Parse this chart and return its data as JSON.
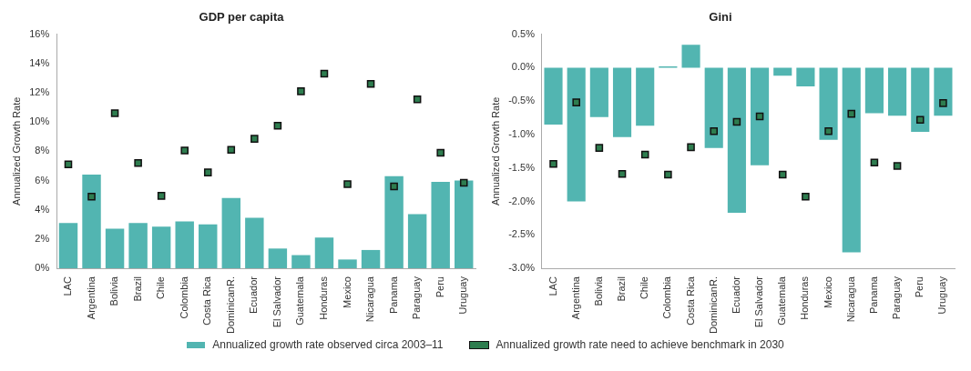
{
  "chart_data": [
    {
      "type": "bar",
      "title": "GDP per capita",
      "ylabel": "Annualized Growth Rate",
      "categories": [
        "LAC",
        "Argentina",
        "Bolivia",
        "Brazil",
        "Chile",
        "Colombia",
        "Costa Rica",
        "DominicanR.",
        "Ecuador",
        "El Salvador",
        "Guatemala",
        "Honduras",
        "Mexico",
        "Nicaragua",
        "Panama",
        "Paraguay",
        "Peru",
        "Uruguay"
      ],
      "series": [
        {
          "name": "Annualized growth rate observed circa 2003–11",
          "color": "#52b5b1",
          "values": [
            3.1,
            6.4,
            2.7,
            3.1,
            2.85,
            3.2,
            3.0,
            4.8,
            3.45,
            1.35,
            0.9,
            2.1,
            0.6,
            1.25,
            6.3,
            3.7,
            5.9,
            6.0
          ]
        },
        {
          "type": "scatter",
          "name": "Annualized growth rate need to achieve benchmark in 2030",
          "color": "#2e7d4f",
          "marker": "square",
          "x": [
            "LAC",
            "Argentina",
            "Bolivia",
            "Brazil",
            "Chile",
            "Colombia",
            "Costa Rica",
            "DominicanR.",
            "Ecuador",
            "El Salvador",
            "Guatemala",
            "Honduras",
            "Mexico",
            "Nicaragua",
            "Panama",
            "Paraguay",
            "Peru",
            "Uruguay"
          ],
          "values": [
            7.1,
            4.9,
            10.6,
            7.2,
            4.95,
            8.05,
            6.55,
            8.1,
            8.85,
            9.75,
            12.1,
            13.3,
            5.75,
            12.6,
            5.6,
            11.55,
            7.9,
            5.85
          ]
        }
      ],
      "ylim": [
        0,
        16
      ],
      "yticks": [
        {
          "value": 0,
          "label": "0%"
        },
        {
          "value": 2,
          "label": "2%"
        },
        {
          "value": 4,
          "label": "4%"
        },
        {
          "value": 6,
          "label": "6%"
        },
        {
          "value": 8,
          "label": "8%"
        },
        {
          "value": 10,
          "label": "10%"
        },
        {
          "value": 12,
          "label": "12%"
        },
        {
          "value": 14,
          "label": "14%"
        },
        {
          "value": 16,
          "label": "16%"
        }
      ],
      "legend": "bottom"
    },
    {
      "type": "bar",
      "title": "Gini",
      "ylabel": "Annualized Growth Rate",
      "categories": [
        "LAC",
        "Argentina",
        "Bolivia",
        "Brazil",
        "Chile",
        "Colombia",
        "Costa Rica",
        "DominicanR.",
        "Ecuador",
        "El Salvador",
        "Guatemala",
        "Honduras",
        "Mexico",
        "Nicaragua",
        "Panama",
        "Paraguay",
        "Peru",
        "Uruguay"
      ],
      "series": [
        {
          "color": "#52b5b1",
          "values": [
            -0.85,
            -2.0,
            -0.74,
            -1.04,
            -0.87,
            0.02,
            0.34,
            -1.2,
            -2.17,
            -1.46,
            -0.12,
            -0.28,
            -1.08,
            -2.76,
            -0.68,
            -0.72,
            -0.96,
            -0.72
          ]
        },
        {
          "type": "scatter",
          "color": "#2e7d4f",
          "marker": "square",
          "x": [
            "LAC",
            "Argentina",
            "Bolivia",
            "Brazil",
            "Chile",
            "Colombia",
            "Costa Rica",
            "DominicanR.",
            "Ecuador",
            "El Salvador",
            "Guatemala",
            "Honduras",
            "Mexico",
            "Nicaragua",
            "Panama",
            "Paraguay",
            "Peru",
            "Uruguay"
          ],
          "values": [
            -1.44,
            -0.52,
            -1.2,
            -1.59,
            -1.3,
            -1.6,
            -1.19,
            -0.95,
            -0.81,
            -0.73,
            -1.6,
            -1.93,
            -0.95,
            -0.69,
            -1.42,
            -1.47,
            -0.78,
            -0.53
          ]
        }
      ],
      "ylim": [
        -3,
        0.5
      ],
      "yticks": [
        {
          "value": -3,
          "label": "-3.0%"
        },
        {
          "value": -2.5,
          "label": "-2.5%"
        },
        {
          "value": -2,
          "label": "-2.0%"
        },
        {
          "value": -1.5,
          "label": "-1.5%"
        },
        {
          "value": -1,
          "label": "-1.0%"
        },
        {
          "value": -0.5,
          "label": "-0.5%"
        },
        {
          "value": 0,
          "label": "0.0%"
        },
        {
          "value": 0.5,
          "label": "0.5%"
        }
      ]
    }
  ]
}
